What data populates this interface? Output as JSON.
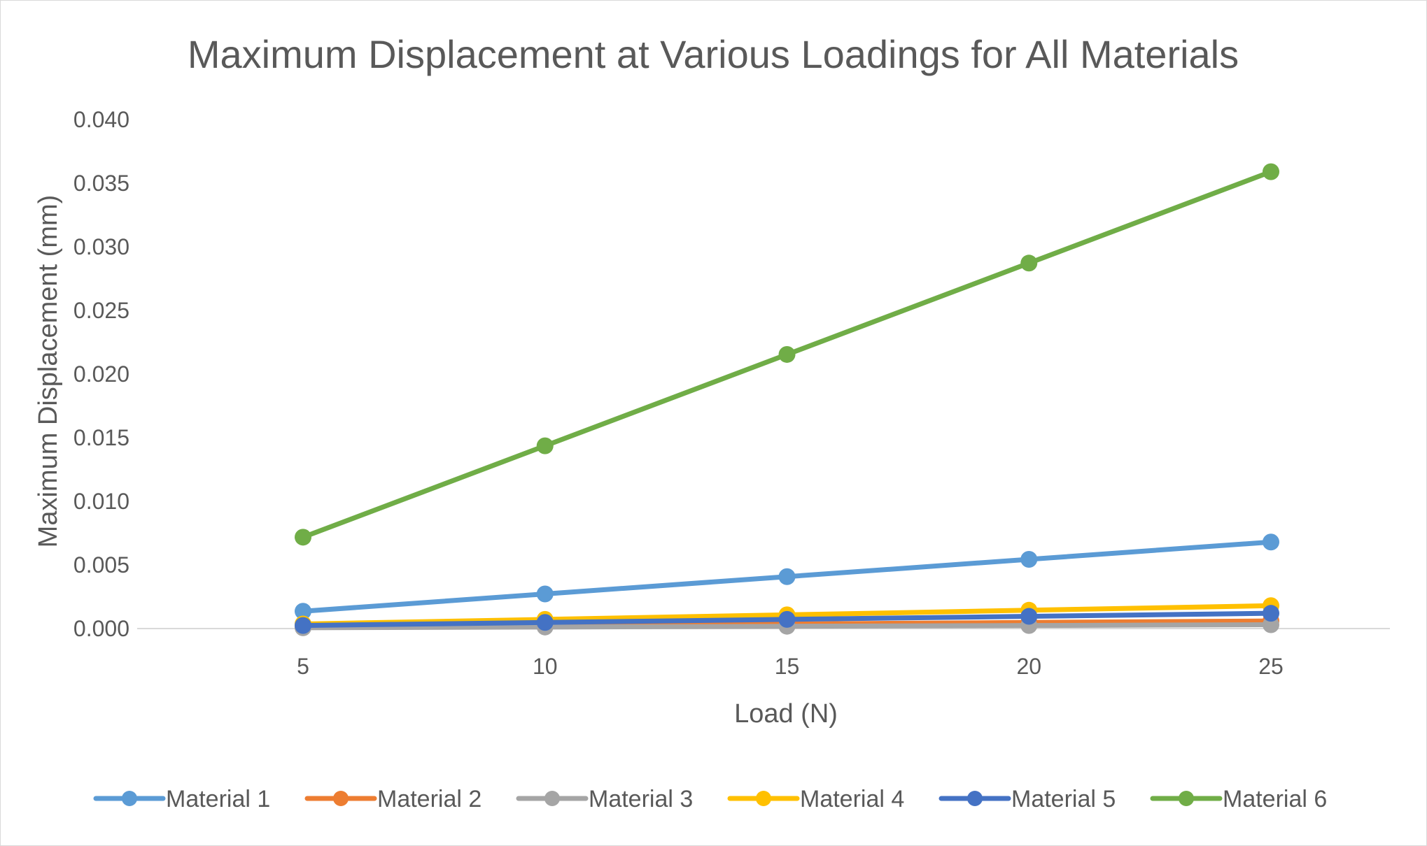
{
  "chart_data": {
    "type": "line",
    "title": "Maximum Displacement at Various Loadings for All Materials",
    "xlabel": "Load (N)",
    "ylabel": "Maximum Displacement (mm)",
    "categories": [
      "5",
      "10",
      "15",
      "20",
      "25"
    ],
    "x": [
      5,
      10,
      15,
      20,
      25
    ],
    "ylim": [
      0,
      0.04
    ],
    "yticks": [
      "0.000",
      "0.005",
      "0.010",
      "0.015",
      "0.020",
      "0.025",
      "0.030",
      "0.035",
      "0.040"
    ],
    "ytick_values": [
      0,
      0.005,
      0.01,
      0.015,
      0.02,
      0.025,
      0.03,
      0.035,
      0.04
    ],
    "grid": "horizontal baseline only",
    "legend_position": "bottom",
    "series": [
      {
        "name": "Material 1",
        "color": "#5B9BD5",
        "values": [
          0.00136,
          0.00272,
          0.00408,
          0.00544,
          0.0068
        ]
      },
      {
        "name": "Material 2",
        "color": "#ED7D31",
        "values": [
          0.00012,
          0.00024,
          0.00036,
          0.00048,
          0.0006
        ]
      },
      {
        "name": "Material 3",
        "color": "#A5A5A5",
        "values": [
          6e-05,
          0.00012,
          0.00018,
          0.00024,
          0.0003
        ]
      },
      {
        "name": "Material 4",
        "color": "#FFC000",
        "values": [
          0.00036,
          0.00072,
          0.00108,
          0.00144,
          0.0018
        ]
      },
      {
        "name": "Material 5",
        "color": "#4472C4",
        "values": [
          0.00024,
          0.00048,
          0.00072,
          0.00096,
          0.0012
        ]
      },
      {
        "name": "Material 6",
        "color": "#70AD47",
        "values": [
          0.00718,
          0.01436,
          0.02154,
          0.02872,
          0.0359
        ]
      }
    ]
  }
}
